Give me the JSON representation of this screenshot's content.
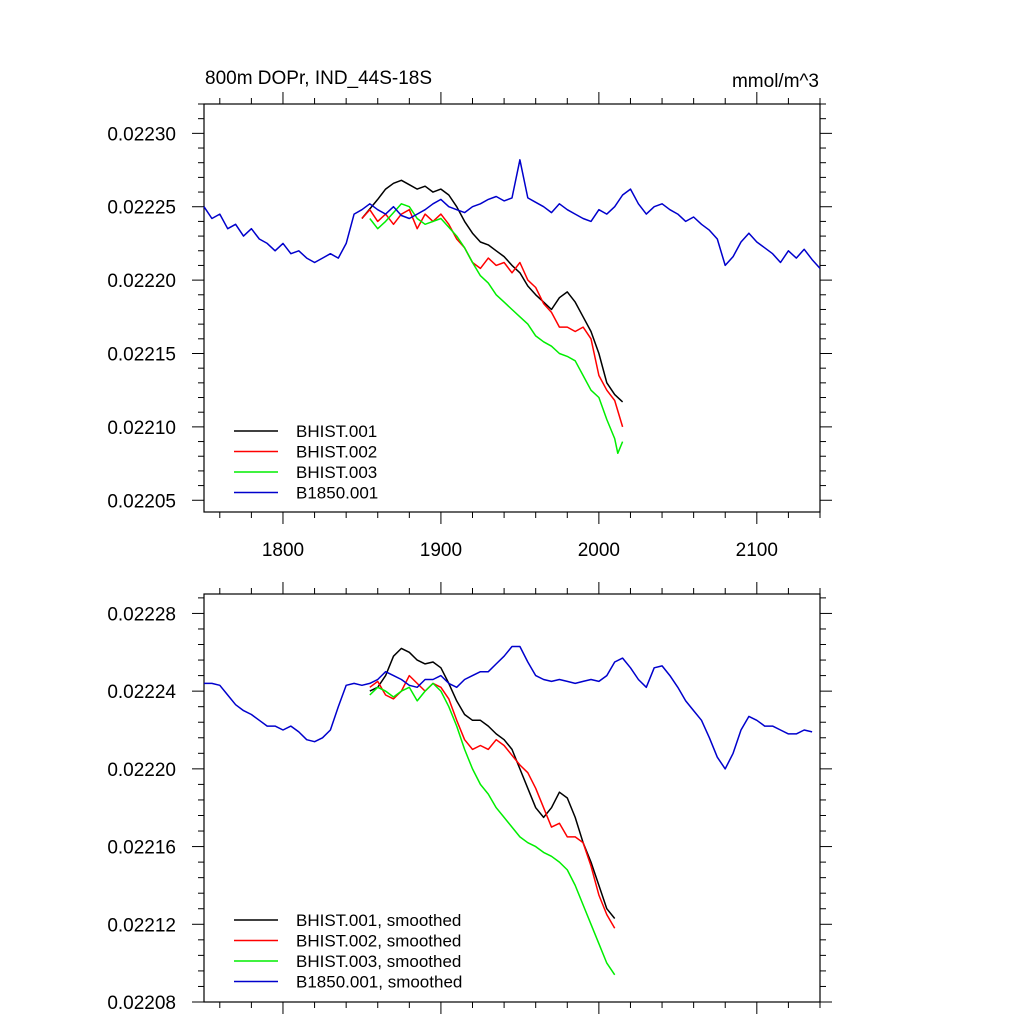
{
  "figure": {
    "title": "800m DOPr, IND_44S-18S",
    "units": "mmol/m^3"
  },
  "chart_data": [
    {
      "type": "line",
      "title": "800m DOPr, IND_44S-18S",
      "units": "mmol/m^3",
      "xlim": [
        1750,
        2140
      ],
      "ylim": [
        0.022042,
        0.02232
      ],
      "xticks": [
        1800,
        1900,
        2000,
        2100
      ],
      "yticks": [
        0.02205,
        0.0221,
        0.02215,
        0.0222,
        0.02225,
        0.0223
      ],
      "yticklabels": [
        "0.02205",
        "0.02210",
        "0.02215",
        "0.02220",
        "0.02225",
        "0.02230"
      ],
      "show_xticklabels": true,
      "legend_position": "bottom-left",
      "series": [
        {
          "name": "BHIST.001",
          "color": "#000000",
          "x": [
            1850,
            1860,
            1865,
            1870,
            1875,
            1880,
            1885,
            1890,
            1895,
            1900,
            1905,
            1910,
            1915,
            1920,
            1925,
            1930,
            1935,
            1940,
            1945,
            1950,
            1955,
            1960,
            1965,
            1970,
            1975,
            1980,
            1985,
            1990,
            1995,
            2000,
            2005,
            2010,
            2015
          ],
          "y": [
            0.022242,
            0.022255,
            0.022262,
            0.022266,
            0.022268,
            0.022265,
            0.022262,
            0.022264,
            0.02226,
            0.022262,
            0.022258,
            0.02225,
            0.02224,
            0.022232,
            0.022226,
            0.022224,
            0.02222,
            0.022216,
            0.02221,
            0.022205,
            0.022196,
            0.02219,
            0.022185,
            0.02218,
            0.022188,
            0.022192,
            0.022185,
            0.022175,
            0.022165,
            0.02215,
            0.02213,
            0.022122,
            0.022117
          ]
        },
        {
          "name": "BHIST.002",
          "color": "#ff0000",
          "x": [
            1850,
            1855,
            1860,
            1865,
            1870,
            1875,
            1880,
            1885,
            1890,
            1895,
            1900,
            1905,
            1910,
            1915,
            1920,
            1925,
            1930,
            1935,
            1940,
            1945,
            1950,
            1955,
            1960,
            1965,
            1970,
            1975,
            1980,
            1985,
            1990,
            1995,
            2000,
            2005,
            2010,
            2015
          ],
          "y": [
            0.022242,
            0.022248,
            0.02224,
            0.022245,
            0.022238,
            0.022245,
            0.022248,
            0.022235,
            0.022245,
            0.02224,
            0.022245,
            0.022238,
            0.022228,
            0.022222,
            0.022212,
            0.022208,
            0.022215,
            0.02221,
            0.022212,
            0.022205,
            0.022212,
            0.0222,
            0.022195,
            0.022184,
            0.022178,
            0.022168,
            0.022168,
            0.022165,
            0.022168,
            0.02216,
            0.022135,
            0.022125,
            0.022118,
            0.0221
          ]
        },
        {
          "name": "BHIST.003",
          "color": "#00ee00",
          "x": [
            1855,
            1860,
            1865,
            1870,
            1875,
            1880,
            1885,
            1890,
            1895,
            1900,
            1905,
            1910,
            1915,
            1920,
            1925,
            1930,
            1935,
            1940,
            1945,
            1950,
            1955,
            1960,
            1965,
            1970,
            1975,
            1980,
            1985,
            1990,
            1995,
            2000,
            2005,
            2010,
            2012,
            2015
          ],
          "y": [
            0.022242,
            0.022235,
            0.02224,
            0.022246,
            0.022252,
            0.02225,
            0.022242,
            0.022238,
            0.02224,
            0.022242,
            0.022236,
            0.02223,
            0.022222,
            0.022212,
            0.022203,
            0.022198,
            0.02219,
            0.022185,
            0.02218,
            0.022175,
            0.02217,
            0.022162,
            0.022158,
            0.022155,
            0.02215,
            0.022148,
            0.022145,
            0.022135,
            0.022125,
            0.02212,
            0.022105,
            0.022092,
            0.022082,
            0.02209
          ]
        },
        {
          "name": "B1850.001",
          "color": "#0000cc",
          "x": [
            1750,
            1755,
            1760,
            1765,
            1770,
            1775,
            1780,
            1785,
            1790,
            1795,
            1800,
            1805,
            1810,
            1815,
            1820,
            1825,
            1830,
            1835,
            1840,
            1845,
            1850,
            1855,
            1860,
            1865,
            1870,
            1875,
            1880,
            1885,
            1890,
            1895,
            1900,
            1905,
            1910,
            1915,
            1920,
            1925,
            1930,
            1935,
            1940,
            1945,
            1950,
            1955,
            1960,
            1965,
            1970,
            1975,
            1980,
            1985,
            1990,
            1995,
            2000,
            2005,
            2010,
            2015,
            2020,
            2025,
            2030,
            2035,
            2040,
            2045,
            2050,
            2055,
            2060,
            2065,
            2070,
            2075,
            2080,
            2085,
            2090,
            2095,
            2100,
            2105,
            2110,
            2115,
            2120,
            2125,
            2130,
            2135,
            2140
          ],
          "y": [
            0.02225,
            0.022242,
            0.022245,
            0.022235,
            0.022238,
            0.02223,
            0.022235,
            0.022228,
            0.022225,
            0.02222,
            0.022225,
            0.022218,
            0.02222,
            0.022215,
            0.022212,
            0.022215,
            0.022218,
            0.022215,
            0.022225,
            0.022245,
            0.022248,
            0.022252,
            0.022248,
            0.022245,
            0.02225,
            0.022244,
            0.022242,
            0.022245,
            0.022248,
            0.022252,
            0.022255,
            0.02225,
            0.022248,
            0.022246,
            0.02225,
            0.022252,
            0.022255,
            0.022257,
            0.022254,
            0.022256,
            0.022282,
            0.022256,
            0.022253,
            0.02225,
            0.022246,
            0.022252,
            0.022248,
            0.022245,
            0.022242,
            0.02224,
            0.022248,
            0.022245,
            0.02225,
            0.022258,
            0.022262,
            0.022252,
            0.022245,
            0.02225,
            0.022252,
            0.022248,
            0.022245,
            0.02224,
            0.022243,
            0.022238,
            0.022234,
            0.022228,
            0.02221,
            0.022216,
            0.022226,
            0.022232,
            0.022226,
            0.022222,
            0.022218,
            0.022212,
            0.02222,
            0.022215,
            0.022221,
            0.022214,
            0.022208
          ]
        }
      ]
    },
    {
      "type": "line",
      "xlim": [
        1750,
        2140
      ],
      "ylim": [
        0.02208,
        0.02229
      ],
      "xticks": [
        1800,
        1900,
        2000,
        2100
      ],
      "yticks": [
        0.02208,
        0.02212,
        0.02216,
        0.0222,
        0.02224,
        0.02228
      ],
      "yticklabels": [
        "0.02208",
        "0.02212",
        "0.02216",
        "0.02220",
        "0.02224",
        "0.02228"
      ],
      "show_xticklabels": false,
      "legend_position": "bottom-left",
      "series": [
        {
          "name": "BHIST.001, smoothed",
          "color": "#000000",
          "x": [
            1855,
            1860,
            1865,
            1870,
            1875,
            1880,
            1885,
            1890,
            1895,
            1900,
            1905,
            1910,
            1915,
            1920,
            1925,
            1930,
            1935,
            1940,
            1945,
            1950,
            1955,
            1960,
            1965,
            1970,
            1975,
            1980,
            1985,
            1990,
            1995,
            2000,
            2005,
            2010
          ],
          "y": [
            0.02224,
            0.022242,
            0.022248,
            0.022258,
            0.022262,
            0.02226,
            0.022256,
            0.022254,
            0.022255,
            0.022252,
            0.022244,
            0.022235,
            0.022228,
            0.022225,
            0.022225,
            0.022222,
            0.022218,
            0.022215,
            0.02221,
            0.0222,
            0.02219,
            0.02218,
            0.022175,
            0.02218,
            0.022188,
            0.022185,
            0.022175,
            0.022162,
            0.022152,
            0.02214,
            0.022128,
            0.022123
          ]
        },
        {
          "name": "BHIST.002, smoothed",
          "color": "#ff0000",
          "x": [
            1855,
            1860,
            1865,
            1870,
            1875,
            1880,
            1885,
            1890,
            1895,
            1900,
            1905,
            1910,
            1915,
            1920,
            1925,
            1930,
            1935,
            1940,
            1945,
            1950,
            1955,
            1960,
            1965,
            1970,
            1975,
            1980,
            1985,
            1990,
            1995,
            2000,
            2005,
            2010
          ],
          "y": [
            0.022242,
            0.022245,
            0.022238,
            0.022236,
            0.02224,
            0.022248,
            0.022244,
            0.02224,
            0.022244,
            0.022242,
            0.022236,
            0.022225,
            0.022215,
            0.02221,
            0.022212,
            0.02221,
            0.022215,
            0.022212,
            0.022207,
            0.022202,
            0.022198,
            0.02219,
            0.02218,
            0.02217,
            0.022172,
            0.022165,
            0.022165,
            0.022162,
            0.02215,
            0.022135,
            0.022125,
            0.022118
          ]
        },
        {
          "name": "BHIST.003, smoothed",
          "color": "#00ee00",
          "x": [
            1855,
            1860,
            1865,
            1870,
            1875,
            1880,
            1885,
            1890,
            1895,
            1900,
            1905,
            1910,
            1915,
            1920,
            1925,
            1930,
            1935,
            1940,
            1945,
            1950,
            1955,
            1960,
            1965,
            1970,
            1975,
            1980,
            1985,
            1990,
            1995,
            2000,
            2005,
            2010
          ],
          "y": [
            0.022238,
            0.022242,
            0.02224,
            0.022237,
            0.02224,
            0.022242,
            0.022235,
            0.02224,
            0.022244,
            0.02224,
            0.022232,
            0.022222,
            0.02221,
            0.0222,
            0.022192,
            0.022187,
            0.02218,
            0.022175,
            0.02217,
            0.022165,
            0.022162,
            0.02216,
            0.022157,
            0.022155,
            0.022152,
            0.022148,
            0.02214,
            0.02213,
            0.02212,
            0.02211,
            0.0221,
            0.022094
          ]
        },
        {
          "name": "B1850.001, smoothed",
          "color": "#0000cc",
          "x": [
            1750,
            1755,
            1760,
            1765,
            1770,
            1775,
            1780,
            1785,
            1790,
            1795,
            1800,
            1805,
            1810,
            1815,
            1820,
            1825,
            1830,
            1835,
            1840,
            1845,
            1850,
            1855,
            1860,
            1865,
            1870,
            1875,
            1880,
            1885,
            1890,
            1895,
            1900,
            1905,
            1910,
            1915,
            1920,
            1925,
            1930,
            1935,
            1940,
            1945,
            1950,
            1955,
            1960,
            1965,
            1970,
            1975,
            1980,
            1985,
            1990,
            1995,
            2000,
            2005,
            2010,
            2015,
            2020,
            2025,
            2030,
            2035,
            2040,
            2045,
            2050,
            2055,
            2060,
            2065,
            2070,
            2075,
            2080,
            2085,
            2090,
            2095,
            2100,
            2105,
            2110,
            2115,
            2120,
            2125,
            2130,
            2135
          ],
          "y": [
            0.022244,
            0.022244,
            0.022243,
            0.022238,
            0.022233,
            0.02223,
            0.022228,
            0.022225,
            0.022222,
            0.022222,
            0.02222,
            0.022222,
            0.022219,
            0.022215,
            0.022214,
            0.022216,
            0.02222,
            0.022232,
            0.022243,
            0.022244,
            0.022243,
            0.022244,
            0.022246,
            0.02225,
            0.022248,
            0.022246,
            0.022243,
            0.022242,
            0.022246,
            0.022246,
            0.022248,
            0.022244,
            0.022242,
            0.022246,
            0.022248,
            0.02225,
            0.02225,
            0.022254,
            0.022258,
            0.022263,
            0.022263,
            0.022255,
            0.022248,
            0.022246,
            0.022245,
            0.022246,
            0.022245,
            0.022244,
            0.022245,
            0.022246,
            0.022245,
            0.022248,
            0.022255,
            0.022257,
            0.022252,
            0.022246,
            0.022242,
            0.022252,
            0.022253,
            0.022248,
            0.022242,
            0.022235,
            0.02223,
            0.022225,
            0.022216,
            0.022206,
            0.0222,
            0.022208,
            0.02222,
            0.022227,
            0.022225,
            0.022222,
            0.022222,
            0.02222,
            0.022218,
            0.022218,
            0.02222,
            0.022219
          ]
        }
      ]
    }
  ]
}
